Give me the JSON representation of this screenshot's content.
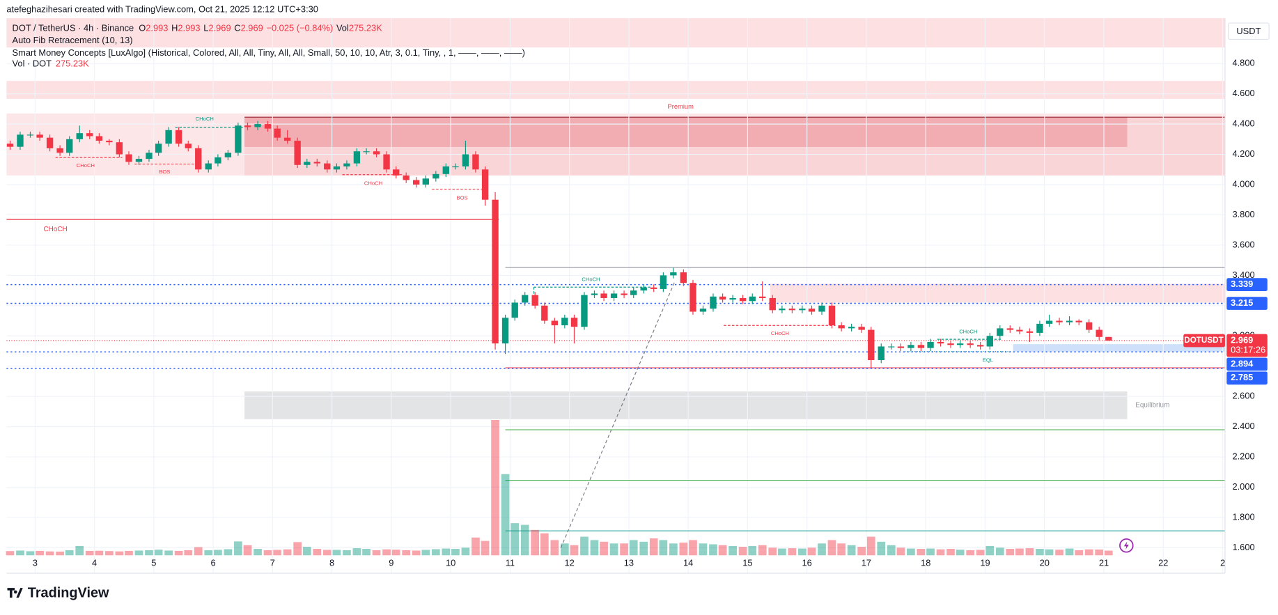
{
  "header": {
    "credit": "atefeghazihesari created with TradingView.com, Oct 21, 2025 12:12 UTC+3:30",
    "symbol": "DOT / TetherUS · 4h · Binance",
    "ohlc_keys": [
      "O",
      "H",
      "L",
      "C"
    ],
    "change": "−0.025 (−0.84%)",
    "vol_key": "Vol",
    "vol_value": "275.23K",
    "indicators": [
      "Auto Fib Retracement (10, 13)",
      "Smart Money Concepts [LuxAlgo] (Historical, Colored, All, All, Tiny, All, All, Small, 50, 10, 10, Atr, 3, 0.1, Tiny, , 1, ——, ——, ——)"
    ],
    "vol_label": "Vol · DOT",
    "vol_label_value": "275.23K"
  },
  "currency": "USDT",
  "ticker": "DOTUSDT",
  "countdown": "03:17:26",
  "logo": "TradingView",
  "chart_data": {
    "type": "candlestick",
    "x": [
      2.58,
      2.75,
      2.92,
      3.08,
      3.25,
      3.42,
      3.58,
      3.75,
      3.92,
      4.08,
      4.25,
      4.42,
      4.58,
      4.75,
      4.92,
      5.08,
      5.25,
      5.42,
      5.58,
      5.75,
      5.92,
      6.08,
      6.25,
      6.42,
      6.58,
      6.75,
      6.92,
      7.08,
      7.25,
      7.42,
      7.58,
      7.75,
      7.92,
      8.08,
      8.25,
      8.42,
      8.58,
      8.75,
      8.92,
      9.08,
      9.25,
      9.42,
      9.58,
      9.75,
      9.92,
      10.08,
      10.25,
      10.42,
      10.58,
      10.75,
      10.92,
      11.08,
      11.25,
      11.42,
      11.58,
      11.75,
      11.92,
      12.08,
      12.25,
      12.42,
      12.58,
      12.75,
      12.92,
      13.08,
      13.25,
      13.42,
      13.58,
      13.75,
      13.92,
      14.08,
      14.25,
      14.42,
      14.58,
      14.75,
      14.92,
      15.08,
      15.25,
      15.42,
      15.58,
      15.75,
      15.92,
      16.08,
      16.25,
      16.42,
      16.58,
      16.75,
      16.92,
      17.08,
      17.25,
      17.42,
      17.58,
      17.75,
      17.92,
      18.08,
      18.25,
      18.42,
      18.58,
      18.75,
      18.92,
      19.08,
      19.25,
      19.42,
      19.58,
      19.75,
      19.92,
      20.08,
      20.25,
      20.42,
      20.58,
      20.75,
      20.92,
      21.08
    ],
    "open": [
      4.27,
      4.25,
      4.33,
      4.33,
      4.31,
      4.24,
      4.21,
      4.3,
      4.34,
      4.32,
      4.29,
      4.28,
      4.2,
      4.15,
      4.17,
      4.21,
      4.27,
      4.36,
      4.27,
      4.24,
      4.1,
      4.14,
      4.18,
      4.21,
      4.39,
      4.38,
      4.4,
      4.37,
      4.31,
      4.29,
      4.13,
      4.15,
      4.14,
      4.1,
      4.12,
      4.14,
      4.22,
      4.22,
      4.2,
      4.1,
      4.06,
      4.03,
      4.0,
      4.04,
      4.07,
      4.12,
      4.12,
      4.2,
      4.1,
      3.9,
      2.95,
      3.12,
      3.22,
      3.27,
      3.2,
      3.1,
      3.07,
      3.12,
      3.06,
      3.27,
      3.28,
      3.25,
      3.28,
      3.27,
      3.3,
      3.32,
      3.31,
      3.4,
      3.42,
      3.35,
      3.16,
      3.18,
      3.26,
      3.24,
      3.25,
      3.23,
      3.26,
      3.25,
      3.17,
      3.18,
      3.17,
      3.18,
      3.16,
      3.2,
      3.07,
      3.05,
      3.06,
      3.04,
      2.84,
      2.93,
      2.93,
      2.92,
      2.94,
      2.92,
      2.96,
      2.95,
      2.94,
      2.95,
      2.94,
      2.93,
      3.0,
      3.05,
      3.04,
      3.03,
      3.02,
      3.08,
      3.1,
      3.09,
      3.1,
      3.09,
      3.04,
      2.993
    ],
    "high": [
      4.29,
      4.35,
      4.35,
      4.35,
      4.33,
      4.26,
      4.32,
      4.39,
      4.36,
      4.34,
      4.3,
      4.3,
      4.22,
      4.19,
      4.23,
      4.29,
      4.38,
      4.38,
      4.29,
      4.26,
      4.16,
      4.2,
      4.23,
      4.41,
      4.41,
      4.42,
      4.42,
      4.39,
      4.36,
      4.31,
      4.17,
      4.17,
      4.16,
      4.14,
      4.16,
      4.24,
      4.24,
      4.24,
      4.22,
      4.12,
      4.08,
      4.05,
      4.06,
      4.09,
      4.14,
      4.14,
      4.29,
      4.22,
      4.12,
      3.95,
      3.14,
      3.24,
      3.29,
      3.29,
      3.22,
      3.12,
      3.14,
      3.14,
      3.29,
      3.3,
      3.3,
      3.3,
      3.3,
      3.32,
      3.34,
      3.34,
      3.42,
      3.45,
      3.44,
      3.37,
      3.2,
      3.28,
      3.28,
      3.27,
      3.27,
      3.28,
      3.36,
      3.27,
      3.2,
      3.2,
      3.2,
      3.2,
      3.22,
      3.22,
      3.09,
      3.08,
      3.08,
      3.06,
      2.95,
      2.95,
      2.95,
      2.96,
      2.96,
      2.98,
      2.98,
      2.97,
      2.97,
      2.97,
      2.96,
      3.02,
      3.07,
      3.07,
      3.06,
      3.05,
      3.1,
      3.14,
      3.12,
      3.13,
      3.11,
      3.11,
      3.06,
      2.993
    ],
    "low": [
      4.23,
      4.23,
      4.31,
      4.29,
      4.22,
      4.19,
      4.19,
      4.28,
      4.3,
      4.27,
      4.26,
      4.18,
      4.13,
      4.13,
      4.15,
      4.19,
      4.25,
      4.25,
      4.22,
      4.08,
      4.08,
      4.12,
      4.16,
      4.19,
      4.36,
      4.36,
      4.35,
      4.29,
      4.27,
      4.11,
      4.11,
      4.12,
      4.08,
      4.08,
      4.1,
      4.12,
      4.2,
      4.18,
      4.08,
      4.04,
      4.01,
      3.98,
      3.98,
      4.02,
      4.05,
      4.1,
      4.1,
      4.08,
      3.86,
      2.91,
      2.88,
      3.1,
      3.2,
      3.18,
      3.08,
      2.95,
      3.05,
      2.95,
      3.04,
      3.25,
      3.23,
      3.23,
      3.25,
      3.25,
      3.28,
      3.29,
      3.29,
      3.38,
      3.33,
      3.14,
      3.14,
      3.16,
      3.22,
      3.22,
      3.21,
      3.21,
      3.23,
      3.15,
      3.15,
      3.15,
      3.15,
      3.14,
      3.14,
      3.05,
      3.03,
      3.03,
      3.02,
      2.79,
      2.82,
      2.91,
      2.9,
      2.9,
      2.9,
      2.9,
      2.93,
      2.92,
      2.92,
      2.92,
      2.91,
      2.91,
      2.98,
      3.02,
      3.01,
      2.96,
      3.0,
      3.06,
      3.07,
      3.07,
      3.07,
      3.02,
      2.97,
      2.969
    ],
    "close": [
      4.25,
      4.33,
      4.33,
      4.31,
      4.24,
      4.21,
      4.3,
      4.34,
      4.32,
      4.29,
      4.28,
      4.2,
      4.15,
      4.17,
      4.21,
      4.27,
      4.36,
      4.27,
      4.24,
      4.1,
      4.14,
      4.18,
      4.21,
      4.39,
      4.38,
      4.4,
      4.37,
      4.31,
      4.29,
      4.13,
      4.15,
      4.14,
      4.1,
      4.12,
      4.14,
      4.22,
      4.22,
      4.2,
      4.1,
      4.06,
      4.03,
      4.0,
      4.04,
      4.07,
      4.12,
      4.12,
      4.2,
      4.1,
      3.9,
      2.95,
      3.12,
      3.22,
      3.27,
      3.2,
      3.1,
      3.07,
      3.12,
      3.06,
      3.27,
      3.28,
      3.25,
      3.28,
      3.27,
      3.3,
      3.32,
      3.31,
      3.4,
      3.42,
      3.35,
      3.16,
      3.18,
      3.26,
      3.24,
      3.25,
      3.23,
      3.26,
      3.25,
      3.17,
      3.18,
      3.17,
      3.18,
      3.16,
      3.2,
      3.07,
      3.05,
      3.06,
      3.04,
      2.84,
      2.93,
      2.93,
      2.92,
      2.94,
      2.92,
      2.96,
      2.95,
      2.94,
      2.95,
      2.94,
      2.93,
      3.0,
      3.05,
      3.04,
      3.03,
      3.02,
      3.08,
      3.1,
      3.09,
      3.1,
      3.09,
      3.04,
      2.993,
      2.969
    ],
    "volume": [
      250,
      280,
      240,
      260,
      230,
      220,
      300,
      550,
      260,
      270,
      250,
      230,
      260,
      280,
      300,
      330,
      280,
      260,
      300,
      480,
      300,
      320,
      360,
      820,
      600,
      380,
      300,
      320,
      350,
      780,
      500,
      380,
      320,
      320,
      300,
      420,
      380,
      300,
      350,
      330,
      300,
      280,
      320,
      360,
      400,
      380,
      450,
      1050,
      850,
      8000,
      4800,
      1900,
      1800,
      1500,
      1300,
      900,
      700,
      600,
      1100,
      900,
      800,
      700,
      700,
      900,
      800,
      1000,
      900,
      700,
      750,
      900,
      700,
      650,
      600,
      550,
      500,
      550,
      600,
      450,
      400,
      420,
      400,
      450,
      700,
      900,
      700,
      600,
      500,
      1100,
      800,
      600,
      450,
      400,
      380,
      400,
      350,
      380,
      330,
      300,
      320,
      550,
      450,
      380,
      400,
      420,
      380,
      350,
      330,
      400,
      300,
      350,
      340,
      275.23
    ],
    "volume_lim": [
      0,
      12000
    ],
    "xlim": [
      2.52,
      23.04
    ],
    "xticks": [
      3,
      4,
      5,
      6,
      7,
      8,
      9,
      10,
      11,
      12,
      13,
      14,
      15,
      16,
      17,
      18,
      19,
      20,
      21,
      22,
      {
        "value": 23,
        "label": "2"
      }
    ],
    "ylim": [
      1.55,
      5.1
    ],
    "yticks": [
      {
        "value": 1.6,
        "label": "1.600"
      },
      {
        "value": 1.8,
        "label": "1.800"
      },
      {
        "value": 2.0,
        "label": "2.000"
      },
      {
        "value": 2.2,
        "label": "2.200"
      },
      {
        "value": 2.4,
        "label": "2.400"
      },
      {
        "value": 2.6,
        "label": "2.600"
      },
      {
        "value": 2.8,
        "label": "2.800"
      },
      {
        "value": 3.0,
        "label": "3.000"
      },
      {
        "value": 3.2,
        "label": "3.200"
      },
      {
        "value": 3.4,
        "label": "3.400"
      },
      {
        "value": 3.6,
        "label": "3.600"
      },
      {
        "value": 3.8,
        "label": "3.800"
      },
      {
        "value": 4.0,
        "label": "4.000"
      },
      {
        "value": 4.2,
        "label": "4.200"
      },
      {
        "value": 4.4,
        "label": "4.400"
      },
      {
        "value": 4.6,
        "label": "4.600"
      },
      {
        "value": 4.8,
        "label": "4.800"
      }
    ],
    "grid": true,
    "up_color": "#089981",
    "down_color": "#f23645",
    "line_color": "#2962ff",
    "price_lines": [
      3.339,
      3.215,
      2.894,
      2.785
    ],
    "annotations": [
      "Premium",
      "CHoCH",
      "CHoCH",
      "BOS",
      "CHoCH",
      "BOS",
      "CHoCH",
      "CHoCH",
      "CHoCH",
      "CHoCH",
      "EQL",
      "Equilibrium"
    ]
  }
}
